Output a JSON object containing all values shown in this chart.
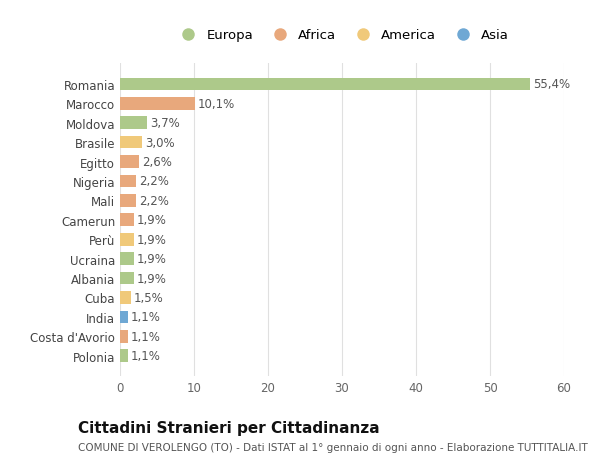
{
  "categories": [
    "Romania",
    "Marocco",
    "Moldova",
    "Brasile",
    "Egitto",
    "Nigeria",
    "Mali",
    "Camerun",
    "Perù",
    "Ucraina",
    "Albania",
    "Cuba",
    "India",
    "Costa d'Avorio",
    "Polonia"
  ],
  "values": [
    55.4,
    10.1,
    3.7,
    3.0,
    2.6,
    2.2,
    2.2,
    1.9,
    1.9,
    1.9,
    1.9,
    1.5,
    1.1,
    1.1,
    1.1
  ],
  "labels": [
    "55,4%",
    "10,1%",
    "3,7%",
    "3,0%",
    "2,6%",
    "2,2%",
    "2,2%",
    "1,9%",
    "1,9%",
    "1,9%",
    "1,9%",
    "1,5%",
    "1,1%",
    "1,1%",
    "1,1%"
  ],
  "continents": [
    "Europa",
    "Africa",
    "Europa",
    "America",
    "Africa",
    "Africa",
    "Africa",
    "Africa",
    "America",
    "Europa",
    "Europa",
    "America",
    "Asia",
    "Africa",
    "Europa"
  ],
  "continent_colors": {
    "Europa": "#adc98a",
    "Africa": "#e8a87c",
    "America": "#f0c97a",
    "Asia": "#6fa8d4"
  },
  "legend_order": [
    "Europa",
    "Africa",
    "America",
    "Asia"
  ],
  "title": "Cittadini Stranieri per Cittadinanza",
  "subtitle": "COMUNE DI VEROLENGO (TO) - Dati ISTAT al 1° gennaio di ogni anno - Elaborazione TUTTITALIA.IT",
  "xlim": [
    0,
    60
  ],
  "xticks": [
    0,
    10,
    20,
    30,
    40,
    50,
    60
  ],
  "bg_color": "#ffffff",
  "grid_color": "#e0e0e0",
  "bar_height": 0.65,
  "label_fontsize": 8.5,
  "tick_fontsize": 8.5,
  "title_fontsize": 11,
  "subtitle_fontsize": 7.5
}
